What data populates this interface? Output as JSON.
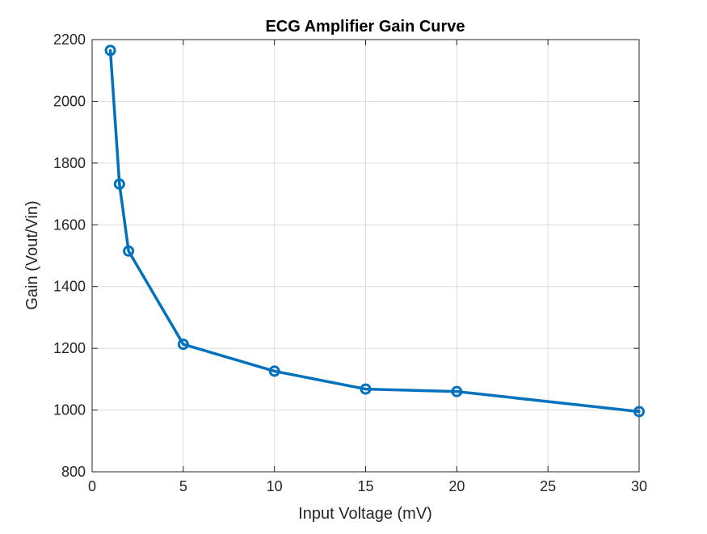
{
  "chart_data": {
    "type": "line",
    "title": "ECG Amplifier Gain Curve",
    "xlabel": "Input Voltage (mV)",
    "ylabel": "Gain (Vout/Vin)",
    "xlim": [
      0,
      30
    ],
    "ylim": [
      800,
      2200
    ],
    "xticks": [
      0,
      5,
      10,
      15,
      20,
      25,
      30
    ],
    "yticks": [
      800,
      1000,
      1200,
      1400,
      1600,
      1800,
      2000,
      2200
    ],
    "grid": true,
    "marker": "circle",
    "series": [
      {
        "x": [
          1,
          1.5,
          2,
          5,
          10,
          15,
          20,
          30
        ],
        "y": [
          2165,
          1732,
          1515,
          1213,
          1126,
          1068,
          1060,
          995
        ]
      }
    ],
    "colors": {
      "series": "#0072BD",
      "grid": "#dcdcdc",
      "axis": "#262626",
      "title": "#000000"
    }
  }
}
